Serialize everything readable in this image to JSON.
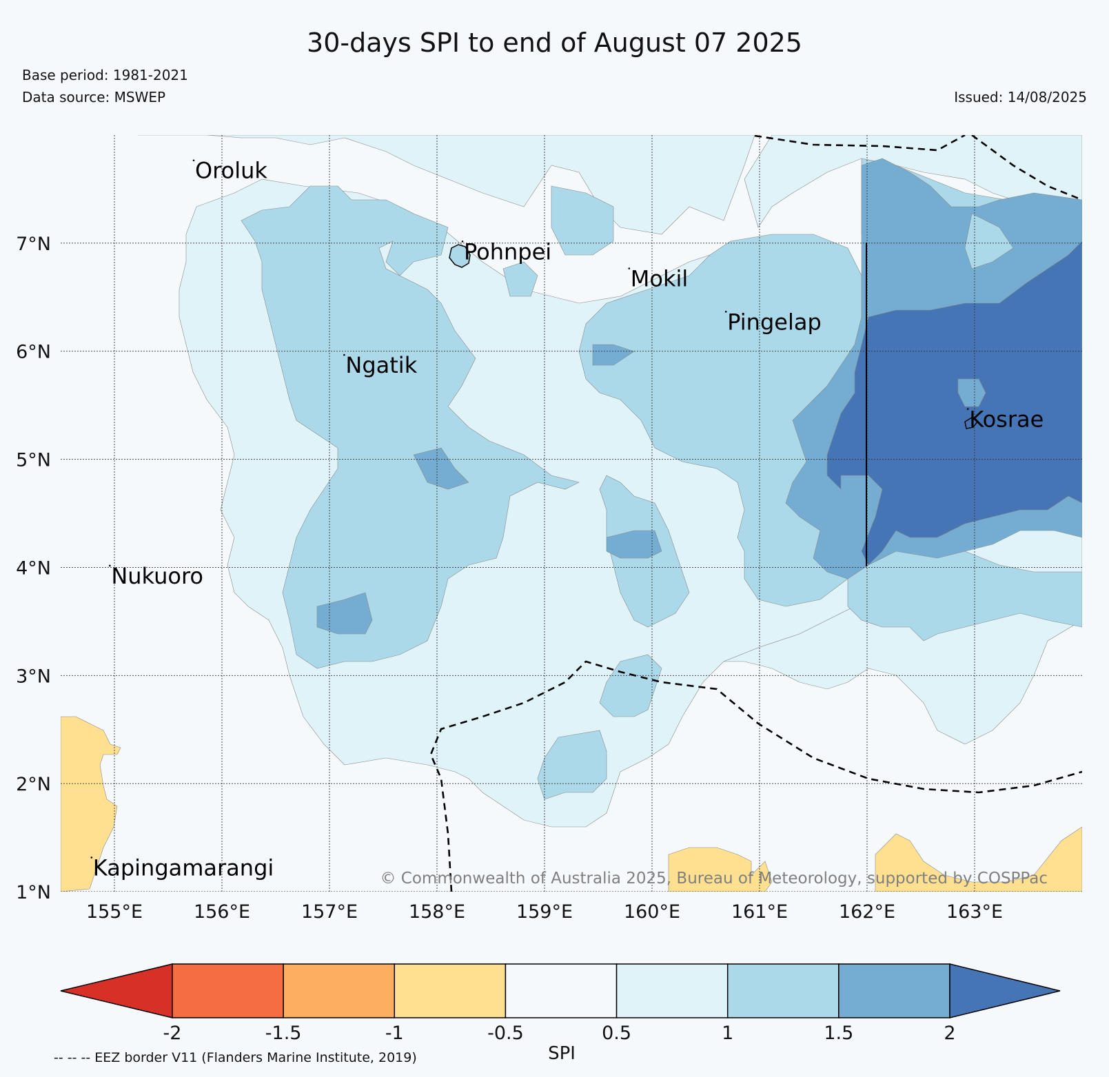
{
  "header": {
    "title": "30-days SPI to end of August 07 2025",
    "base_period": "Base period: 1981-2021",
    "data_source": "Data source: MSWEP",
    "issued": "Issued: 14/08/2025"
  },
  "map": {
    "extent": {
      "lon_min": 154.5,
      "lon_max": 164.0,
      "lat_min": 1.0,
      "lat_max": 8.0
    },
    "lon_ticks": [
      {
        "value": 155,
        "label": "155°E"
      },
      {
        "value": 156,
        "label": "156°E"
      },
      {
        "value": 157,
        "label": "157°E"
      },
      {
        "value": 158,
        "label": "158°E"
      },
      {
        "value": 159,
        "label": "159°E"
      },
      {
        "value": 160,
        "label": "160°E"
      },
      {
        "value": 161,
        "label": "161°E"
      },
      {
        "value": 162,
        "label": "162°E"
      },
      {
        "value": 163,
        "label": "163°E"
      }
    ],
    "lat_ticks": [
      {
        "value": 7,
        "label": "7°N"
      },
      {
        "value": 6,
        "label": "6°N"
      },
      {
        "value": 5,
        "label": "5°N"
      },
      {
        "value": 4,
        "label": "4°N"
      },
      {
        "value": 3,
        "label": "3°N"
      },
      {
        "value": 2,
        "label": "2°N"
      },
      {
        "value": 1,
        "label": "1°N"
      }
    ],
    "places": [
      {
        "name": "Oroluk",
        "lon": 155.75,
        "lat": 7.6
      },
      {
        "name": "Pohnpei",
        "lon": 158.25,
        "lat": 6.85
      },
      {
        "name": "Mokil",
        "lon": 159.8,
        "lat": 6.6
      },
      {
        "name": "Pingelap",
        "lon": 160.7,
        "lat": 6.2
      },
      {
        "name": "Ngatik",
        "lon": 157.15,
        "lat": 5.8
      },
      {
        "name": "Kosrae",
        "lon": 162.95,
        "lat": 5.3
      },
      {
        "name": "Nukuoro",
        "lon": 154.97,
        "lat": 3.85
      },
      {
        "name": "Kapingamarangi",
        "lon": 154.8,
        "lat": 1.15
      }
    ],
    "copyright": "© Commonwealth of Australia 2025, Bureau of Meteorology, supported by COSPPac",
    "colors": {
      "ocean": "#f5f9fc",
      "spi_05_1": "#e0f3f8",
      "spi_1_15": "#abd9e9",
      "spi_15_2": "#74add1",
      "spi_gt_2": "#4575b4",
      "spi_m1_m05": "#fee090"
    }
  },
  "colorbar": {
    "label": "SPI",
    "ticks": [
      "-2",
      "-1.5",
      "-1",
      "-0.5",
      "0.5",
      "1",
      "1.5",
      "2"
    ],
    "under_color": "#d73027",
    "over_color": "#4575b4",
    "bin_colors": [
      "#f46d43",
      "#fdae61",
      "#fee090",
      "#f5f9fc",
      "#e0f3f8",
      "#abd9e9",
      "#74add1"
    ],
    "eez_note": "-- -- -- EEZ border V11 (Flanders Marine Institute, 2019)"
  }
}
